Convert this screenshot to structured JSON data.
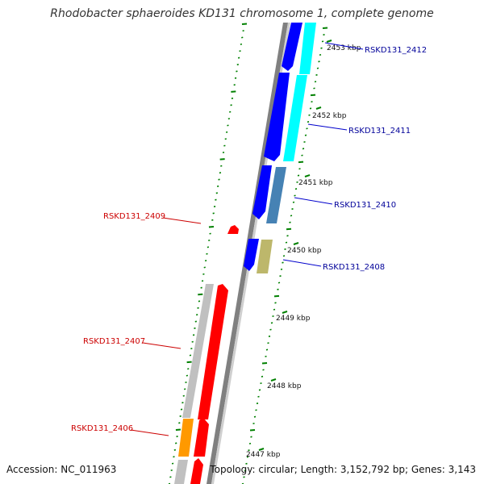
{
  "title": "Rhodobacter sphaeroides KD131 chromosome 1, complete genome",
  "accession": "Accession: NC_011963",
  "topology": "Topology: circular; Length: 3,152,792 bp; Genes: 3,143",
  "colors": {
    "forward_genes": "#0000ff",
    "reverse_gene_red": "#ff0000",
    "cyan_gene": "#00ffff",
    "steelblue_gene": "#4682b4",
    "khaki_gene": "#bdb76b",
    "orange_gene": "#ff9900",
    "grey_gene": "#c0c0c0",
    "tick_green": "#008000",
    "backbone": "#808080"
  },
  "kbp_ticks": [
    "2447 kbp",
    "2448 kbp",
    "2449 kbp",
    "2450 kbp",
    "2451 kbp",
    "2452 kbp",
    "2453 kbp"
  ],
  "gene_labels_right": [
    "RSKD131_2412",
    "RSKD131_2411",
    "RSKD131_2410",
    "RSKD131_2408"
  ],
  "gene_labels_left": [
    "RSKD131_2409",
    "RSKD131_2407",
    "RSKD131_2406"
  ]
}
